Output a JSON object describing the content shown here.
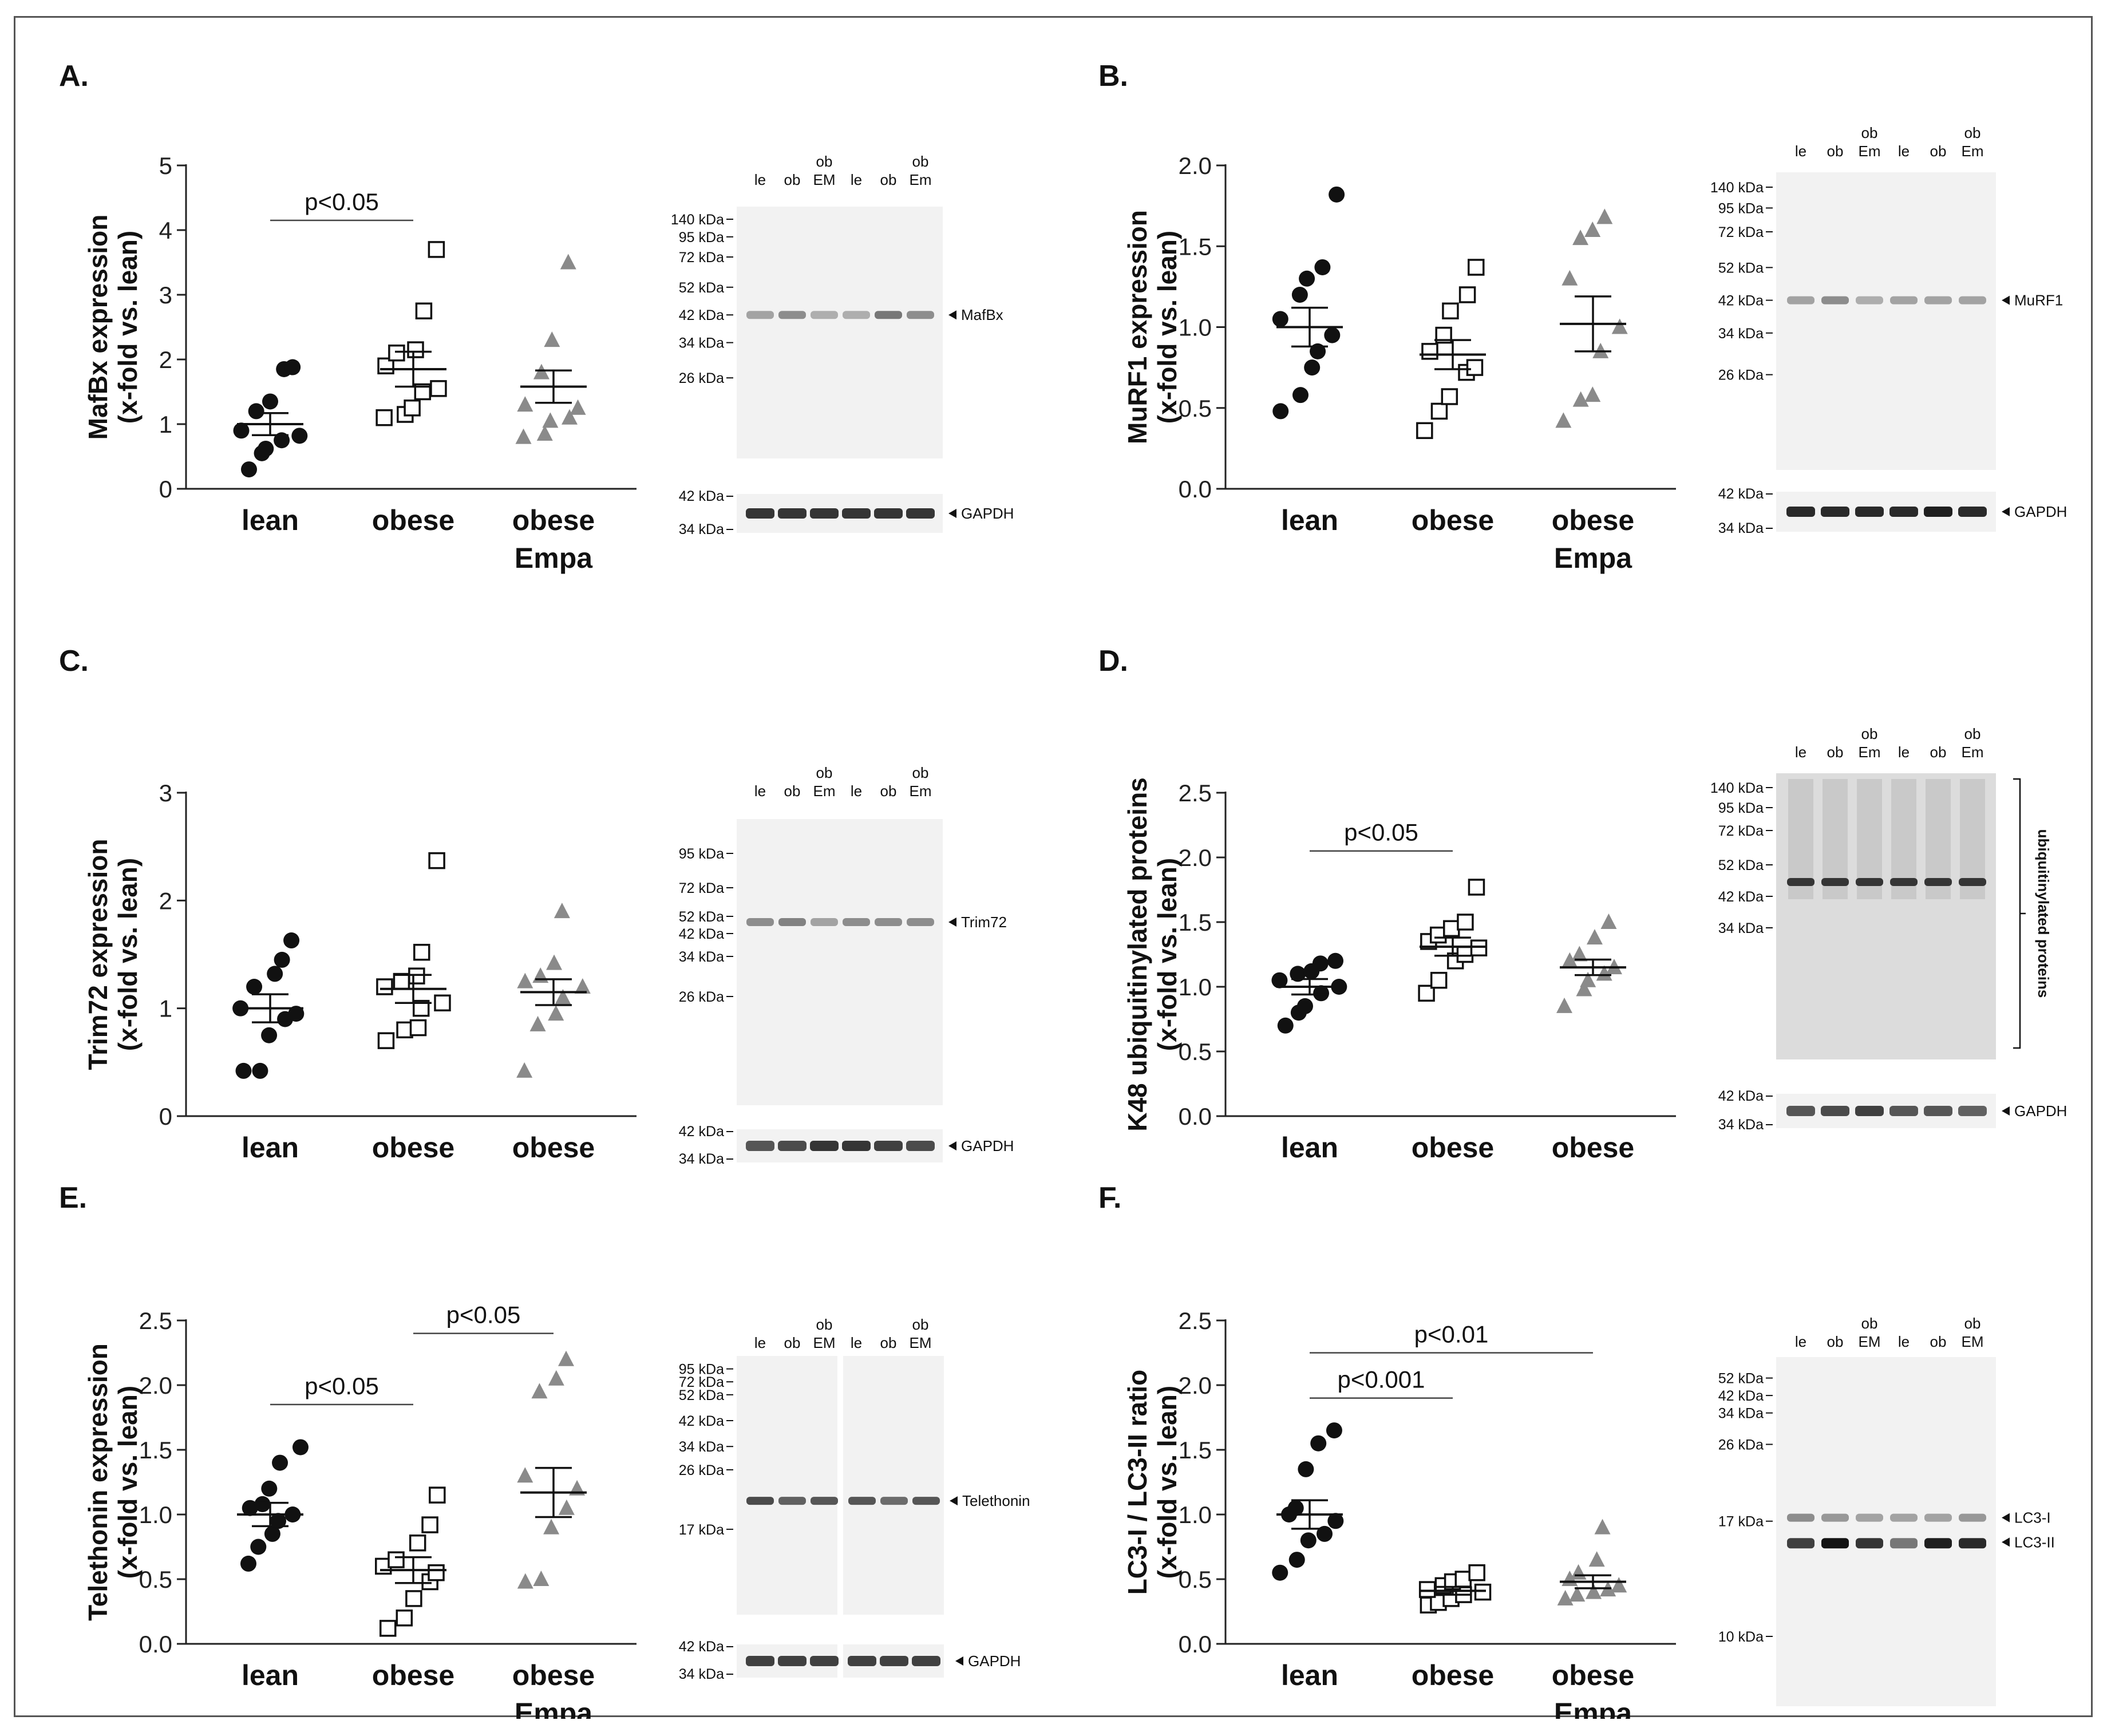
{
  "chart_data": [
    {
      "panel": "A.",
      "type": "scatter",
      "ylabel": "MafBx  expression",
      "ylabel2": "(x-fold vs. lean)",
      "yticks": [
        "0",
        "1",
        "2",
        "3",
        "4",
        "5"
      ],
      "ylim": [
        0,
        5
      ],
      "groups": [
        "lean",
        "obese",
        "obese Empa"
      ],
      "series": [
        {
          "name": "lean",
          "marker": "circle",
          "values": [
            0.3,
            0.55,
            0.62,
            0.75,
            0.82,
            0.9,
            1.2,
            1.35,
            1.85,
            1.88
          ],
          "mean": 1.0,
          "sem": 0.17
        },
        {
          "name": "obese",
          "marker": "square",
          "values": [
            1.1,
            1.15,
            1.25,
            1.5,
            1.55,
            1.9,
            2.1,
            2.15,
            2.75,
            3.7
          ],
          "mean": 1.85,
          "sem": 0.27
        },
        {
          "name": "obese Empa",
          "marker": "triangle",
          "values": [
            0.8,
            0.85,
            1.05,
            1.1,
            1.25,
            1.3,
            1.8,
            2.3,
            3.5
          ],
          "mean": 1.58,
          "sem": 0.25
        }
      ],
      "significance": [
        {
          "from": 0,
          "to": 1,
          "label": "p<0.05",
          "y": 4.15
        }
      ]
    },
    {
      "panel": "B.",
      "type": "scatter",
      "ylabel": "MuRF1 expression",
      "ylabel2": "(x-fold vs. lean)",
      "yticks": [
        "0.0",
        "0.5",
        "1.0",
        "1.5",
        "2.0"
      ],
      "ylim": [
        0,
        2.0
      ],
      "groups": [
        "lean",
        "obese",
        "obese Empa"
      ],
      "series": [
        {
          "name": "lean",
          "marker": "circle",
          "values": [
            0.48,
            0.58,
            0.75,
            0.85,
            0.95,
            1.05,
            1.2,
            1.3,
            1.37,
            1.82
          ],
          "mean": 1.0,
          "sem": 0.12
        },
        {
          "name": "obese",
          "marker": "square",
          "values": [
            0.36,
            0.48,
            0.57,
            0.72,
            0.75,
            0.85,
            0.95,
            1.1,
            1.2,
            1.37
          ],
          "mean": 0.83,
          "sem": 0.09
        },
        {
          "name": "obese Empa",
          "marker": "triangle",
          "values": [
            0.42,
            0.55,
            0.58,
            0.85,
            1.0,
            1.3,
            1.55,
            1.6,
            1.68
          ],
          "mean": 1.02,
          "sem": 0.17
        }
      ],
      "significance": []
    },
    {
      "panel": "C.",
      "type": "scatter",
      "ylabel": "Trim72 expression",
      "ylabel2": "(x-fold vs. lean)",
      "yticks": [
        "0",
        "1",
        "2",
        "3"
      ],
      "ylim": [
        0,
        3
      ],
      "groups": [
        "lean",
        "obese",
        "obese Empa"
      ],
      "series": [
        {
          "name": "lean",
          "marker": "circle",
          "values": [
            0.42,
            0.42,
            0.75,
            0.9,
            0.95,
            1.0,
            1.2,
            1.32,
            1.45,
            1.63
          ],
          "mean": 1.0,
          "sem": 0.13
        },
        {
          "name": "obese",
          "marker": "square",
          "values": [
            0.7,
            0.8,
            0.82,
            1.0,
            1.05,
            1.2,
            1.25,
            1.3,
            1.52,
            2.37
          ],
          "mean": 1.18,
          "sem": 0.13
        },
        {
          "name": "obese Empa",
          "marker": "triangle",
          "values": [
            0.42,
            0.85,
            0.95,
            1.1,
            1.2,
            1.25,
            1.3,
            1.42,
            1.9
          ],
          "mean": 1.15,
          "sem": 0.12
        }
      ],
      "significance": []
    },
    {
      "panel": "D.",
      "type": "scatter",
      "ylabel": "K48 ubiquitinylated proteins",
      "ylabel2": "(x-fold vs. lean)",
      "yticks": [
        "0.0",
        "0.5",
        "1.0",
        "1.5",
        "2.0",
        "2.5"
      ],
      "ylim": [
        0,
        2.5
      ],
      "groups": [
        "lean",
        "obese",
        "obese Empa"
      ],
      "series": [
        {
          "name": "lean",
          "marker": "circle",
          "values": [
            0.7,
            0.8,
            0.85,
            0.95,
            1.0,
            1.05,
            1.1,
            1.12,
            1.18,
            1.2
          ],
          "mean": 1.0,
          "sem": 0.06
        },
        {
          "name": "obese",
          "marker": "square",
          "values": [
            0.95,
            1.05,
            1.2,
            1.25,
            1.3,
            1.35,
            1.4,
            1.45,
            1.5,
            1.77
          ],
          "mean": 1.31,
          "sem": 0.07
        },
        {
          "name": "obese Empa",
          "marker": "triangle",
          "values": [
            0.85,
            0.98,
            1.05,
            1.1,
            1.15,
            1.2,
            1.25,
            1.38,
            1.5
          ],
          "mean": 1.15,
          "sem": 0.06
        }
      ],
      "significance": [
        {
          "from": 0,
          "to": 1,
          "label": "p<0.05",
          "y": 2.05
        }
      ]
    },
    {
      "panel": "E.",
      "type": "scatter",
      "ylabel": "Telethonin expression",
      "ylabel2": "(x-fold vs. lean)",
      "yticks": [
        "0.0",
        "0.5",
        "1.0",
        "1.5",
        "2.0",
        "2.5"
      ],
      "ylim": [
        0,
        2.5
      ],
      "groups": [
        "lean",
        "obese",
        "obese Empa"
      ],
      "series": [
        {
          "name": "lean",
          "marker": "circle",
          "values": [
            0.62,
            0.75,
            0.85,
            0.95,
            1.0,
            1.05,
            1.08,
            1.2,
            1.4,
            1.52
          ],
          "mean": 1.0,
          "sem": 0.09
        },
        {
          "name": "obese",
          "marker": "square",
          "values": [
            0.12,
            0.2,
            0.35,
            0.48,
            0.55,
            0.6,
            0.65,
            0.78,
            0.92,
            1.15
          ],
          "mean": 0.57,
          "sem": 0.1
        },
        {
          "name": "obese Empa",
          "marker": "triangle",
          "values": [
            0.48,
            0.5,
            0.9,
            1.05,
            1.2,
            1.3,
            1.95,
            2.05,
            2.2
          ],
          "mean": 1.17,
          "sem": 0.19
        }
      ],
      "significance": [
        {
          "from": 0,
          "to": 1,
          "label": "p<0.05",
          "y": 1.85
        },
        {
          "from": 1,
          "to": 2,
          "label": "p<0.05",
          "y": 2.4
        }
      ]
    },
    {
      "panel": "F.",
      "type": "scatter",
      "ylabel": "LC3-I / LC3-II ratio",
      "ylabel2": "(x-fold vs. lean)",
      "yticks": [
        "0.0",
        "0.5",
        "1.0",
        "1.5",
        "2.0",
        "2.5"
      ],
      "ylim": [
        0,
        2.5
      ],
      "groups": [
        "lean",
        "obese",
        "obese Empa"
      ],
      "series": [
        {
          "name": "lean",
          "marker": "circle",
          "values": [
            0.55,
            0.65,
            0.8,
            0.85,
            0.95,
            1.0,
            1.05,
            1.35,
            1.55,
            1.65
          ],
          "mean": 1.0,
          "sem": 0.11
        },
        {
          "name": "obese",
          "marker": "square",
          "values": [
            0.3,
            0.32,
            0.35,
            0.38,
            0.4,
            0.42,
            0.45,
            0.48,
            0.5,
            0.55
          ],
          "mean": 0.41,
          "sem": 0.03
        },
        {
          "name": "obese Empa",
          "marker": "triangle",
          "values": [
            0.35,
            0.38,
            0.4,
            0.42,
            0.45,
            0.5,
            0.55,
            0.65,
            0.9
          ],
          "mean": 0.48,
          "sem": 0.05
        }
      ],
      "significance": [
        {
          "from": 0,
          "to": 1,
          "label": "p<0.001",
          "y": 1.9
        },
        {
          "from": 0,
          "to": 2,
          "label": "p<0.01",
          "y": 2.25
        }
      ]
    }
  ],
  "blots": [
    {
      "panel": "A.",
      "lanes": [
        "le",
        "ob",
        "ob\nEM",
        "le",
        "ob",
        "ob\nEm"
      ],
      "split": false,
      "markers": [
        "140 kDa",
        "95 kDa",
        "72 kDa",
        "52 kDa",
        "42 kDa",
        "34 kDa",
        "26 kDa"
      ],
      "bands": [
        {
          "label": "MafBx",
          "marker": "42 kDa",
          "intensity": [
            0.35,
            0.45,
            0.3,
            0.3,
            0.55,
            0.45
          ]
        }
      ],
      "loading": {
        "label": "GAPDH",
        "markers": [
          "42 kDa",
          "34 kDa"
        ],
        "intensity": [
          0.85,
          0.85,
          0.85,
          0.85,
          0.85,
          0.85
        ]
      },
      "bracket": null
    },
    {
      "panel": "B.",
      "lanes": [
        "le",
        "ob",
        "ob\nEm",
        "le",
        "ob",
        "ob\nEm"
      ],
      "split": false,
      "markers": [
        "140 kDa",
        "95 kDa",
        "72 kDa",
        "52 kDa",
        "42 kDa",
        "34 kDa",
        "26 kDa"
      ],
      "bands": [
        {
          "label": "MuRF1",
          "marker": "42 kDa",
          "intensity": [
            0.35,
            0.45,
            0.3,
            0.35,
            0.35,
            0.35
          ]
        }
      ],
      "loading": {
        "label": "GAPDH",
        "markers": [
          "42 kDa",
          "34 kDa"
        ],
        "intensity": [
          0.9,
          0.9,
          0.9,
          0.9,
          0.95,
          0.9
        ]
      },
      "bracket": null
    },
    {
      "panel": "C.",
      "lanes": [
        "le",
        "ob",
        "ob\nEm",
        "le",
        "ob",
        "ob\nEm"
      ],
      "split": false,
      "markers": [
        "95 kDa",
        "72 kDa",
        "52 kDa",
        "42 kDa",
        "34 kDa",
        "26 kDa"
      ],
      "bands": [
        {
          "label": "Trim72",
          "marker": "52 kDa",
          "intensity": [
            0.45,
            0.5,
            0.35,
            0.45,
            0.45,
            0.45
          ]
        }
      ],
      "loading": {
        "label": "GAPDH",
        "markers": [
          "42 kDa",
          "34 kDa"
        ],
        "intensity": [
          0.7,
          0.75,
          0.85,
          0.85,
          0.8,
          0.75
        ]
      },
      "bracket": null
    },
    {
      "panel": "D.",
      "lanes": [
        "le",
        "ob",
        "ob\nEm",
        "le",
        "ob",
        "ob\nEm"
      ],
      "split": false,
      "markers": [
        "140 kDa",
        "95 kDa",
        "72 kDa",
        "52 kDa",
        "42 kDa",
        "34 kDa"
      ],
      "bands": [
        {
          "label": "",
          "marker": "52 kDa",
          "intensity": [
            0.85,
            0.85,
            0.85,
            0.85,
            0.85,
            0.85
          ]
        }
      ],
      "loading": {
        "label": "GAPDH",
        "markers": [
          "42 kDa",
          "34 kDa"
        ],
        "intensity": [
          0.7,
          0.75,
          0.8,
          0.7,
          0.7,
          0.65
        ]
      },
      "bracket": "ubiquitinylated proteins"
    },
    {
      "panel": "E.",
      "lanes": [
        "le",
        "ob",
        "ob\nEM",
        "le",
        "ob",
        "ob\nEM"
      ],
      "split": true,
      "markers": [
        "95 kDa",
        "72 kDa",
        "52 kDa",
        "42 kDa",
        "34 kDa",
        "26 kDa",
        "17 kDa"
      ],
      "bands": [
        {
          "label": "Telethonin",
          "marker": "17 kDa",
          "intensity": [
            0.75,
            0.65,
            0.7,
            0.7,
            0.6,
            0.7
          ]
        }
      ],
      "loading": {
        "label": "GAPDH",
        "markers": [
          "42 kDa",
          "34 kDa"
        ],
        "intensity": [
          0.8,
          0.8,
          0.8,
          0.8,
          0.8,
          0.8
        ]
      },
      "bracket": null
    },
    {
      "panel": "F.",
      "lanes": [
        "le",
        "ob",
        "ob\nEM",
        "le",
        "ob",
        "ob\nEM"
      ],
      "split": false,
      "markers": [
        "52 kDa",
        "42 kDa",
        "34 kDa",
        "26 kDa",
        "17 kDa",
        "10 kDa"
      ],
      "bands": [
        {
          "label": "LC3-I",
          "marker": "17 kDa",
          "intensity": [
            0.45,
            0.4,
            0.35,
            0.35,
            0.35,
            0.4
          ]
        },
        {
          "label": "LC3-II",
          "marker": "17 kDa",
          "intensity": [
            0.8,
            1.0,
            0.85,
            0.55,
            0.95,
            0.9
          ]
        }
      ],
      "loading": null,
      "bracket": null
    }
  ]
}
